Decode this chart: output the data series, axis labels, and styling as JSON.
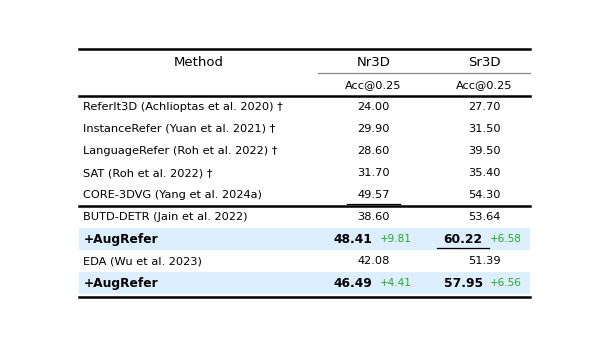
{
  "title_method": "Method",
  "col_nr3d": "Nr3D",
  "col_sr3d": "Sr3D",
  "sub_col": "Acc@0.25",
  "rows": [
    {
      "method": "ReferIt3D (Achlioptas et al. 2020) †",
      "nr3d": "24.00",
      "sr3d": "27.70",
      "aug": false,
      "highlight": false,
      "underline_nr3d": false,
      "underline_sr3d": false
    },
    {
      "method": "InstanceRefer (Yuan et al. 2021) †",
      "nr3d": "29.90",
      "sr3d": "31.50",
      "aug": false,
      "highlight": false,
      "underline_nr3d": false,
      "underline_sr3d": false
    },
    {
      "method": "LanguageRefer (Roh et al. 2022) †",
      "nr3d": "28.60",
      "sr3d": "39.50",
      "aug": false,
      "highlight": false,
      "underline_nr3d": false,
      "underline_sr3d": false
    },
    {
      "method": "SAT (Roh et al. 2022) †",
      "nr3d": "31.70",
      "sr3d": "35.40",
      "aug": false,
      "highlight": false,
      "underline_nr3d": false,
      "underline_sr3d": false
    },
    {
      "method": "CORE-3DVG (Yang et al. 2024a)",
      "nr3d": "49.57",
      "sr3d": "54.30",
      "aug": false,
      "highlight": false,
      "underline_nr3d": true,
      "underline_sr3d": false
    },
    {
      "method": "BUTD-DETR (Jain et al. 2022)",
      "nr3d": "38.60",
      "sr3d": "53.64",
      "aug": false,
      "highlight": false,
      "underline_nr3d": false,
      "underline_sr3d": false
    },
    {
      "method": "+AugRefer",
      "nr3d": "48.41",
      "sr3d": "60.22",
      "nr3d_gain": "+9.81",
      "sr3d_gain": "+6.58",
      "aug": true,
      "highlight": true,
      "underline_nr3d": false,
      "underline_sr3d": true
    },
    {
      "method": "EDA (Wu et al. 2023)",
      "nr3d": "42.08",
      "sr3d": "51.39",
      "aug": false,
      "highlight": false,
      "underline_nr3d": false,
      "underline_sr3d": false
    },
    {
      "method": "+AugRefer",
      "nr3d": "46.49",
      "sr3d": "57.95",
      "nr3d_gain": "+4.41",
      "sr3d_gain": "+6.56",
      "aug": true,
      "highlight": true,
      "underline_nr3d": false,
      "underline_sr3d": false
    }
  ],
  "highlight_color": "#ddeeff",
  "gain_color": "#22aa22",
  "background_color": "#ffffff",
  "thick_line_color": "#000000",
  "thin_line_color": "#888888"
}
